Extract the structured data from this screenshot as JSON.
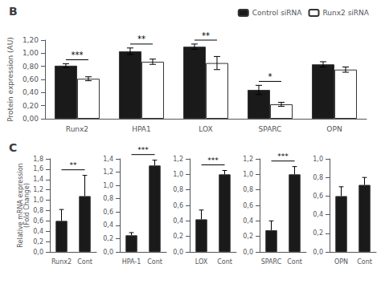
{
  "chart_data": [
    {
      "type": "bar",
      "title": "B",
      "ylabel": "Protein expression (AU)",
      "categories": [
        "Runx2",
        "HPA1",
        "LOX",
        "SPARC",
        "OPN"
      ],
      "series": [
        {
          "name": "Control siRNA",
          "color": "#1a1a1a",
          "values": [
            0.81,
            1.03,
            1.1,
            0.44,
            0.83
          ],
          "errors": [
            0.03,
            0.05,
            0.04,
            0.07,
            0.04
          ]
        },
        {
          "name": "Runx2 siRNA",
          "color": "#ffffff",
          "values": [
            0.61,
            0.87,
            0.85,
            0.22,
            0.75
          ],
          "errors": [
            0.03,
            0.04,
            0.1,
            0.03,
            0.04
          ]
        }
      ],
      "annotations": [
        "***",
        "**",
        "**",
        "*",
        null
      ],
      "ylim": [
        0.0,
        1.2
      ],
      "yticks": [
        {
          "value": 0.0,
          "label": "0,00"
        },
        {
          "value": 0.2,
          "label": "0,20"
        },
        {
          "value": 0.4,
          "label": "0,40"
        },
        {
          "value": 0.6,
          "label": "0,60"
        },
        {
          "value": 0.8,
          "label": "0,80"
        },
        {
          "value": 1.0,
          "label": "1,00"
        },
        {
          "value": 1.2,
          "label": "1,20"
        }
      ],
      "legend": "upper right",
      "grid": false
    },
    {
      "type": "bar",
      "title": "C",
      "ylabel": "Relative mRNA expression\n(Fold Change)",
      "categories": [
        "Runx2",
        "Cont"
      ],
      "values": [
        0.6,
        1.08
      ],
      "errors_up": [
        0.22,
        0.4
      ],
      "color": "#1a1a1a",
      "annotations": [
        "**"
      ],
      "ylim": [
        0.0,
        1.8
      ],
      "yticks": [
        {
          "value": 0.0,
          "label": "0,0"
        },
        {
          "value": 0.2,
          "label": "0,2"
        },
        {
          "value": 0.4,
          "label": "0,4"
        },
        {
          "value": 0.6,
          "label": "0,6"
        },
        {
          "value": 0.8,
          "label": "0,8"
        },
        {
          "value": 1.0,
          "label": "1,0"
        },
        {
          "value": 1.2,
          "label": "1,2"
        },
        {
          "value": 1.4,
          "label": "1,4"
        },
        {
          "value": 1.6,
          "label": "1,6"
        },
        {
          "value": 1.8,
          "label": "1,8"
        }
      ],
      "grid": false
    },
    {
      "type": "bar",
      "categories": [
        "HPA-1",
        "Cont"
      ],
      "values": [
        0.25,
        1.3
      ],
      "errors_up": [
        0.04,
        0.08
      ],
      "color": "#1a1a1a",
      "annotations": [
        "***"
      ],
      "ylim": [
        0.0,
        1.4
      ],
      "yticks": [
        {
          "value": 0.0,
          "label": "0,0"
        },
        {
          "value": 0.2,
          "label": "0,2"
        },
        {
          "value": 0.4,
          "label": "0,4"
        },
        {
          "value": 0.6,
          "label": "0,6"
        },
        {
          "value": 0.8,
          "label": "0,8"
        },
        {
          "value": 1.0,
          "label": "1,0"
        },
        {
          "value": 1.2,
          "label": "1,2"
        },
        {
          "value": 1.4,
          "label": "1,4"
        }
      ],
      "grid": false
    },
    {
      "type": "bar",
      "categories": [
        "LOX",
        "Cont"
      ],
      "values": [
        0.42,
        1.0
      ],
      "errors_up": [
        0.12,
        0.05
      ],
      "color": "#1a1a1a",
      "annotations": [
        "***"
      ],
      "ylim": [
        0.0,
        1.2
      ],
      "yticks": [
        {
          "value": 0.0,
          "label": "0,0"
        },
        {
          "value": 0.2,
          "label": "0,2"
        },
        {
          "value": 0.4,
          "label": "0,4"
        },
        {
          "value": 0.6,
          "label": "0,6"
        },
        {
          "value": 0.8,
          "label": "0,8"
        },
        {
          "value": 1.0,
          "label": "1,0"
        },
        {
          "value": 1.2,
          "label": "1,2"
        }
      ],
      "grid": false
    },
    {
      "type": "bar",
      "categories": [
        "SPARC",
        "Cont"
      ],
      "values": [
        0.28,
        1.0
      ],
      "errors_up": [
        0.12,
        0.1
      ],
      "color": "#1a1a1a",
      "annotations": [
        "***"
      ],
      "ylim": [
        0.0,
        1.2
      ],
      "yticks": [
        {
          "value": 0.0,
          "label": "0,0"
        },
        {
          "value": 0.2,
          "label": "0,2"
        },
        {
          "value": 0.4,
          "label": "0,4"
        },
        {
          "value": 0.6,
          "label": "0,6"
        },
        {
          "value": 0.8,
          "label": "0,8"
        },
        {
          "value": 1.0,
          "label": "1,0"
        },
        {
          "value": 1.2,
          "label": "1,2"
        }
      ],
      "grid": false
    },
    {
      "type": "bar",
      "categories": [
        "OPN",
        "Cont"
      ],
      "values": [
        0.6,
        0.72
      ],
      "errors_up": [
        0.1,
        0.08
      ],
      "color": "#1a1a1a",
      "ylim": [
        0.0,
        1.0
      ],
      "yticks": [
        {
          "value": 0.0,
          "label": "0,0"
        },
        {
          "value": 0.2,
          "label": "0,2"
        },
        {
          "value": 0.4,
          "label": "0,4"
        },
        {
          "value": 0.6,
          "label": "0,6"
        },
        {
          "value": 0.8,
          "label": "0,8"
        },
        {
          "value": 1.0,
          "label": "1,0"
        }
      ],
      "grid": false
    }
  ]
}
